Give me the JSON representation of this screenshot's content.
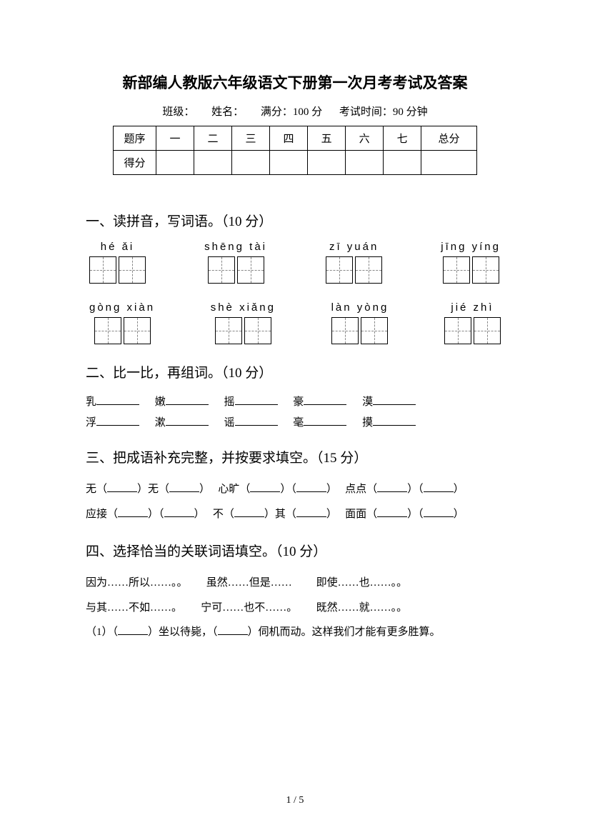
{
  "title": "新部编人教版六年级语文下册第一次月考考试及答案",
  "info": {
    "class_label": "班级：",
    "name_label": "姓名：",
    "full_score": "满分：100 分",
    "exam_time": "考试时间：90 分钟"
  },
  "score_table": {
    "header_row": [
      "题序",
      "一",
      "二",
      "三",
      "四",
      "五",
      "六",
      "七",
      "总分"
    ],
    "score_label": "得分"
  },
  "section1": {
    "header": "一、读拼音，写词语。（10 分）",
    "row1": [
      {
        "pinyin": "hé  ǎi"
      },
      {
        "pinyin": "shēng  tài"
      },
      {
        "pinyin": "zī  yuán"
      },
      {
        "pinyin": "jīng  yíng"
      }
    ],
    "row2": [
      {
        "pinyin": "gòng  xiàn"
      },
      {
        "pinyin": "shè  xiǎng"
      },
      {
        "pinyin": "làn  yòng"
      },
      {
        "pinyin": "jié  zhì"
      }
    ]
  },
  "section2": {
    "header": "二、比一比，再组词。（10 分）",
    "line1": [
      "乳",
      "嫩",
      "摇",
      "豪",
      "漠"
    ],
    "line2": [
      "浮",
      "漱",
      "谣",
      "毫",
      "摸"
    ]
  },
  "section3": {
    "header": "三、把成语补充完整，并按要求填空。（15 分）",
    "items": [
      {
        "pre": "无（",
        "mid": "）无（",
        "post": "）"
      },
      {
        "pre": "心旷（",
        "mid": "）（",
        "post": "）"
      },
      {
        "pre": "点点（",
        "mid": "）（",
        "post": "）"
      },
      {
        "pre": "应接（",
        "mid": "）（",
        "post": "）"
      },
      {
        "pre": "不（",
        "mid": "）其（",
        "post": "）"
      },
      {
        "pre": "面面（",
        "mid": "）（",
        "post": "）"
      }
    ]
  },
  "section4": {
    "header": "四、选择恰当的关联词语填空。（10 分）",
    "conj_row1": [
      "因为……所以……。。",
      "虽然……但是……",
      "即使……也……。。"
    ],
    "conj_row2": [
      "与其……不如……。",
      "宁可……也不……。",
      "既然……就……。。"
    ],
    "q1_prefix": "（1）（",
    "q1_mid": "）坐以待毙，（",
    "q1_end": "）伺机而动。这样我们才能有更多胜算。"
  },
  "footer": "1 / 5"
}
